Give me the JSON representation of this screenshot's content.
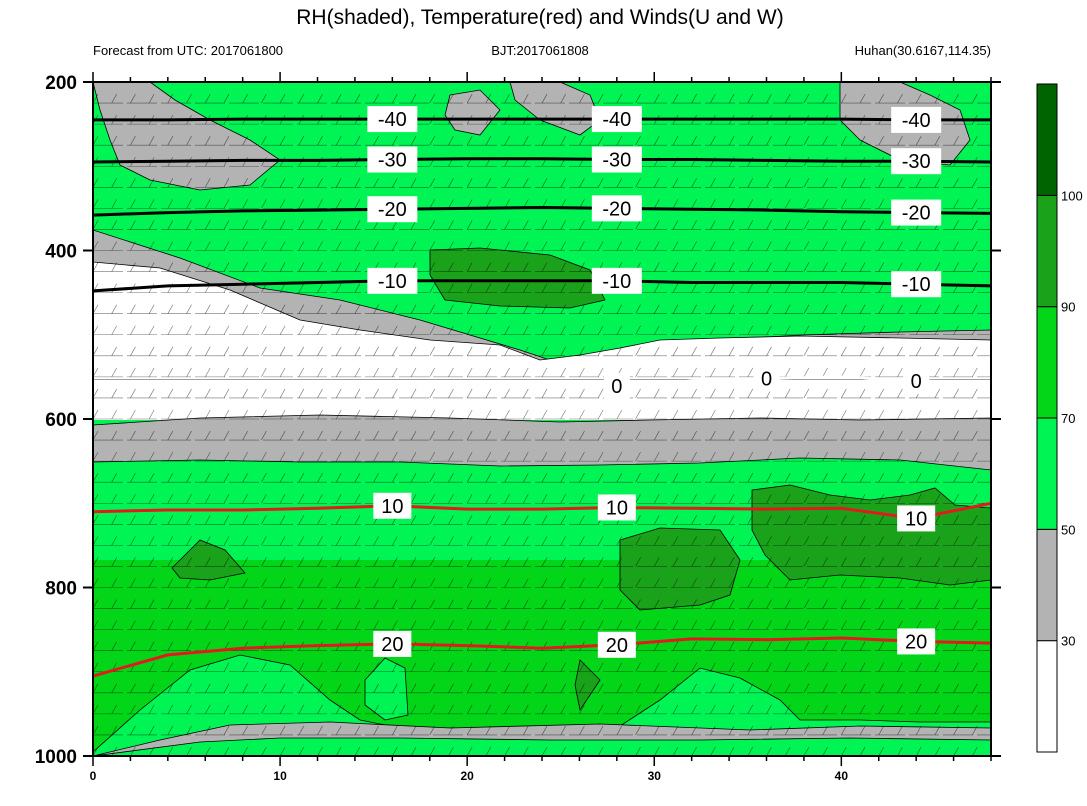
{
  "chart_data": {
    "type": "heatmap",
    "title": "RH(shaded), Temperature(red) and Winds(U and W)",
    "subtitle_left": "Forecast from UTC: 2017061800",
    "subtitle_center": "BJT:2017061808",
    "subtitle_right": "Huhan(30.6167,114.35)",
    "xlabel": "",
    "ylabel": "",
    "xlim": [
      0,
      48
    ],
    "ylim": [
      1000,
      200
    ],
    "x_ticks": [
      "0",
      "10",
      "20",
      "30",
      "40"
    ],
    "y_ticks": [
      "200",
      "400",
      "600",
      "800",
      "1000"
    ],
    "colorbar": {
      "levels": [
        30,
        50,
        70,
        90,
        100
      ],
      "colors": [
        "#ffffff",
        "#b3b3b3",
        "#00f554",
        "#03d619",
        "#1aa31a",
        "#006400"
      ]
    },
    "temperature_isotherms": [
      {
        "value": 20,
        "label": "20",
        "color": "#e31a1c",
        "x": [
          0,
          4,
          8,
          12,
          16,
          20,
          24,
          28,
          32,
          36,
          40,
          44,
          48
        ],
        "p": [
          905,
          880,
          872,
          869,
          867,
          869,
          872,
          868,
          861,
          862,
          860,
          864,
          866
        ]
      },
      {
        "value": 10,
        "label": "10",
        "color": "#e31a1c",
        "x": [
          0,
          4,
          8,
          12,
          16,
          20,
          24,
          28,
          32,
          36,
          40,
          44,
          48
        ],
        "p": [
          710,
          708,
          708,
          706,
          703,
          707,
          707,
          705,
          706,
          707,
          706,
          718,
          700
        ]
      },
      {
        "value": 0,
        "label": "0",
        "color": "#ffffff",
        "x": [
          18,
          20,
          24,
          28,
          32,
          36,
          40,
          44,
          48
        ],
        "p": [
          559,
          562,
          562,
          561,
          555,
          552,
          550,
          555,
          557
        ]
      },
      {
        "value": -10,
        "label": "-10",
        "color": "#000000",
        "x": [
          0,
          4,
          8,
          12,
          16,
          20,
          24,
          28,
          32,
          36,
          40,
          44,
          48
        ],
        "p": [
          448,
          442,
          440,
          438,
          436,
          436,
          436,
          436,
          438,
          438,
          438,
          440,
          442
        ]
      },
      {
        "value": -20,
        "label": "-20",
        "color": "#000000",
        "x": [
          0,
          4,
          8,
          12,
          16,
          20,
          24,
          28,
          32,
          36,
          40,
          44,
          48
        ],
        "p": [
          358,
          355,
          353,
          352,
          351,
          350,
          349,
          350,
          351,
          352,
          354,
          355,
          356
        ]
      },
      {
        "value": -30,
        "label": "-30",
        "color": "#000000",
        "x": [
          0,
          4,
          8,
          12,
          16,
          20,
          24,
          28,
          32,
          36,
          40,
          44,
          48
        ],
        "p": [
          295,
          294,
          293,
          293,
          292,
          291,
          291,
          292,
          292,
          293,
          294,
          294,
          295
        ]
      },
      {
        "value": -40,
        "label": "-40",
        "color": "#000000",
        "x": [
          0,
          4,
          8,
          12,
          16,
          20,
          24,
          28,
          32,
          36,
          40,
          44,
          48
        ],
        "p": [
          245,
          245,
          244,
          244,
          244,
          244,
          244,
          244,
          244,
          244,
          244,
          245,
          245
        ]
      }
    ]
  }
}
